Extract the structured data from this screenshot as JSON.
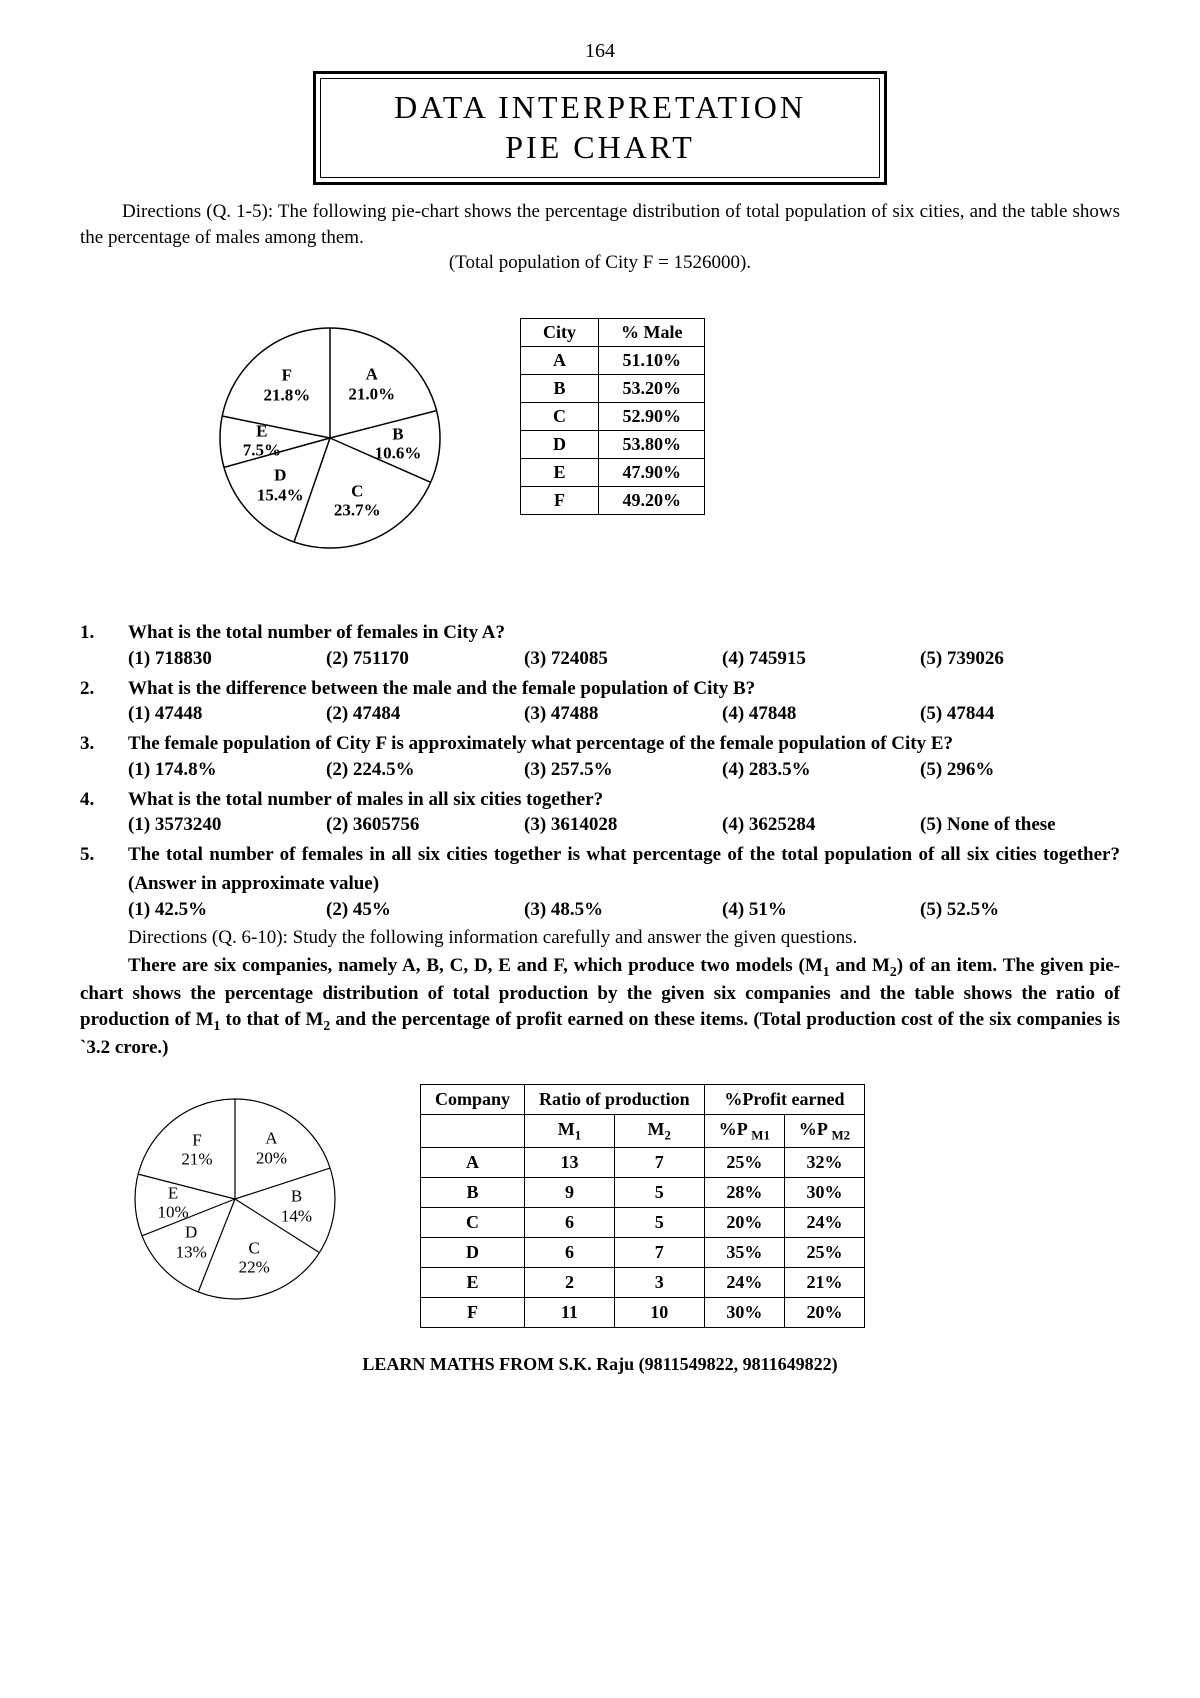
{
  "page_number": "164",
  "title_line1": "DATA  INTERPRETATION",
  "title_line2": "PIE CHART",
  "directions_1": "Directions (Q. 1-5): The following pie-chart shows the percentage distribution of total population of six cities, and the table shows the percentage of males among them.",
  "subnote_1": "(Total population of City F = 1526000).",
  "pie1": {
    "type": "pie",
    "radius": 110,
    "stroke": "#000000",
    "stroke_width": 1.5,
    "fill": "#ffffff",
    "background": "#ffffff",
    "label_font_weight": "bold",
    "label_font_size": 17,
    "slices": [
      {
        "key": "A",
        "pct": 21.0,
        "label1": "A",
        "label2": "21.0%"
      },
      {
        "key": "B",
        "pct": 10.6,
        "label1": "B",
        "label2": "10.6%"
      },
      {
        "key": "C",
        "pct": 23.7,
        "label1": "C",
        "label2": "23.7%"
      },
      {
        "key": "D",
        "pct": 15.4,
        "label1": "D",
        "label2": "15.4%"
      },
      {
        "key": "E",
        "pct": 7.5,
        "label1": "E",
        "label2": "7.5%"
      },
      {
        "key": "F",
        "pct": 21.8,
        "label1": "F",
        "label2": "21.8%"
      }
    ]
  },
  "table1": {
    "headers": [
      "City",
      "% Male"
    ],
    "rows": [
      [
        "A",
        "51.10%"
      ],
      [
        "B",
        "53.20%"
      ],
      [
        "C",
        "52.90%"
      ],
      [
        "D",
        "53.80%"
      ],
      [
        "E",
        "47.90%"
      ],
      [
        "F",
        "49.20%"
      ]
    ]
  },
  "questions": [
    {
      "num": "1.",
      "text": "What is the total number of females in City A?",
      "opts": [
        "(1)  718830",
        "(2)  751170",
        "(3)  724085",
        "(4)  745915",
        "(5)  739026"
      ]
    },
    {
      "num": "2.",
      "text": "What is the difference between the male and the female population of City B?",
      "opts": [
        "(1)  47448",
        "(2)  47484",
        "(3)  47488",
        "(4)  47848",
        "(5)  47844"
      ]
    },
    {
      "num": "3.",
      "text": "The female population of City F is approximately what percentage of the female population of City E?",
      "opts": [
        "(1)  174.8%",
        "(2)  224.5%",
        "(3)  257.5%",
        "(4)  283.5%",
        "(5)  296%"
      ]
    },
    {
      "num": "4.",
      "text": "What is the total number of males in all six cities together?",
      "opts": [
        "(1)  3573240",
        "(2)  3605756",
        "(3)  3614028",
        "(4)  3625284",
        "(5)   None of these"
      ]
    },
    {
      "num": "5.",
      "text": "The total number of females in all six cities together is what percentage of the total population of all six cities together? (Answer in approximate value)",
      "opts": [
        "(1)  42.5%",
        "(2)  45%",
        "(3)  48.5%",
        "(4)  51%",
        "(5)  52.5%"
      ]
    }
  ],
  "directions_2a": "Directions (Q. 6-10): Study the following information carefully and answer the given questions.",
  "directions_2b_html": "There are six companies, namely A, B, C, D, E and F, which produce two models (M<sub>1</sub> and M<sub>2</sub>) of an item. The given pie-chart shows the percentage distribution of total production by the given six companies and the table shows the ratio of production of M<sub>1</sub> to that of M<sub>2</sub> and the percentage of profit earned on these items. (Total production cost of the six companies is `3.2 crore.)",
  "pie2": {
    "type": "pie",
    "radius": 100,
    "stroke": "#000000",
    "stroke_width": 1.2,
    "fill": "#ffffff",
    "background": "#ffffff",
    "label_font_weight": "normal",
    "label_font_size": 17,
    "slices": [
      {
        "key": "A",
        "pct": 20,
        "label1": "A",
        "label2": "20%"
      },
      {
        "key": "B",
        "pct": 14,
        "label1": "B",
        "label2": "14%"
      },
      {
        "key": "C",
        "pct": 22,
        "label1": "C",
        "label2": "22%"
      },
      {
        "key": "D",
        "pct": 13,
        "label1": "D",
        "label2": "13%"
      },
      {
        "key": "E",
        "pct": 10,
        "label1": "E",
        "label2": "10%"
      },
      {
        "key": "F",
        "pct": 21,
        "label1": "F",
        "label2": "21%"
      }
    ]
  },
  "table2": {
    "header_row1": [
      "Company",
      "Ratio of production",
      "%Profit earned"
    ],
    "header_row2_html": [
      "",
      "M<sub>1</sub>",
      "M<sub>2</sub>",
      "%P <sub>M1</sub>",
      "%P <sub>M2</sub>"
    ],
    "rows": [
      [
        "A",
        "13",
        "7",
        "25%",
        "32%"
      ],
      [
        "B",
        "9",
        "5",
        "28%",
        "30%"
      ],
      [
        "C",
        "6",
        "5",
        "20%",
        "24%"
      ],
      [
        "D",
        "6",
        "7",
        "35%",
        "25%"
      ],
      [
        "E",
        "2",
        "3",
        "24%",
        "21%"
      ],
      [
        "F",
        "11",
        "10",
        "30%",
        "20%"
      ]
    ]
  },
  "footer": "LEARN MATHS FROM S.K. Raju (9811549822, 9811649822)"
}
